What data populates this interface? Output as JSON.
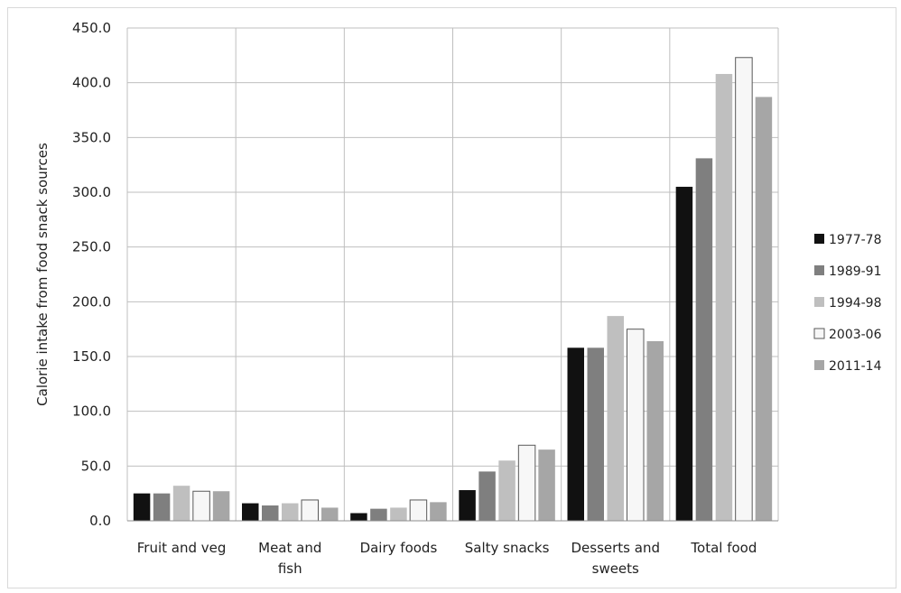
{
  "chart_data": {
    "type": "bar",
    "title": "",
    "xlabel": "",
    "ylabel": "Calorie intake from food snack sources",
    "ylim": [
      0,
      450
    ],
    "y_ticks": [
      "0.0",
      "50.0",
      "100.0",
      "150.0",
      "200.0",
      "250.0",
      "300.0",
      "350.0",
      "400.0",
      "450.0"
    ],
    "grid": "vertical category separators",
    "legend_position": "right",
    "categories": [
      [
        "Fruit and veg"
      ],
      [
        "Meat and",
        "fish"
      ],
      [
        "Dairy foods"
      ],
      [
        "Salty snacks"
      ],
      [
        "Desserts and",
        "sweets"
      ],
      [
        "Total food"
      ]
    ],
    "series": [
      {
        "name": "1977-78",
        "color": "#111111",
        "values": [
          25,
          16,
          7,
          28,
          158,
          305
        ]
      },
      {
        "name": "1989-91",
        "color": "#7f7f7f",
        "values": [
          25,
          14,
          11,
          45,
          158,
          331
        ]
      },
      {
        "name": "1994-98",
        "color": "#bfbfbf",
        "values": [
          32,
          16,
          12,
          55,
          187,
          408
        ]
      },
      {
        "name": "2003-06",
        "color": "#f7f7f7",
        "values": [
          27,
          19,
          19,
          69,
          175,
          423
        ]
      },
      {
        "name": "2011-14",
        "color": "#a6a6a6",
        "values": [
          27,
          12,
          17,
          65,
          164,
          387
        ]
      }
    ]
  }
}
